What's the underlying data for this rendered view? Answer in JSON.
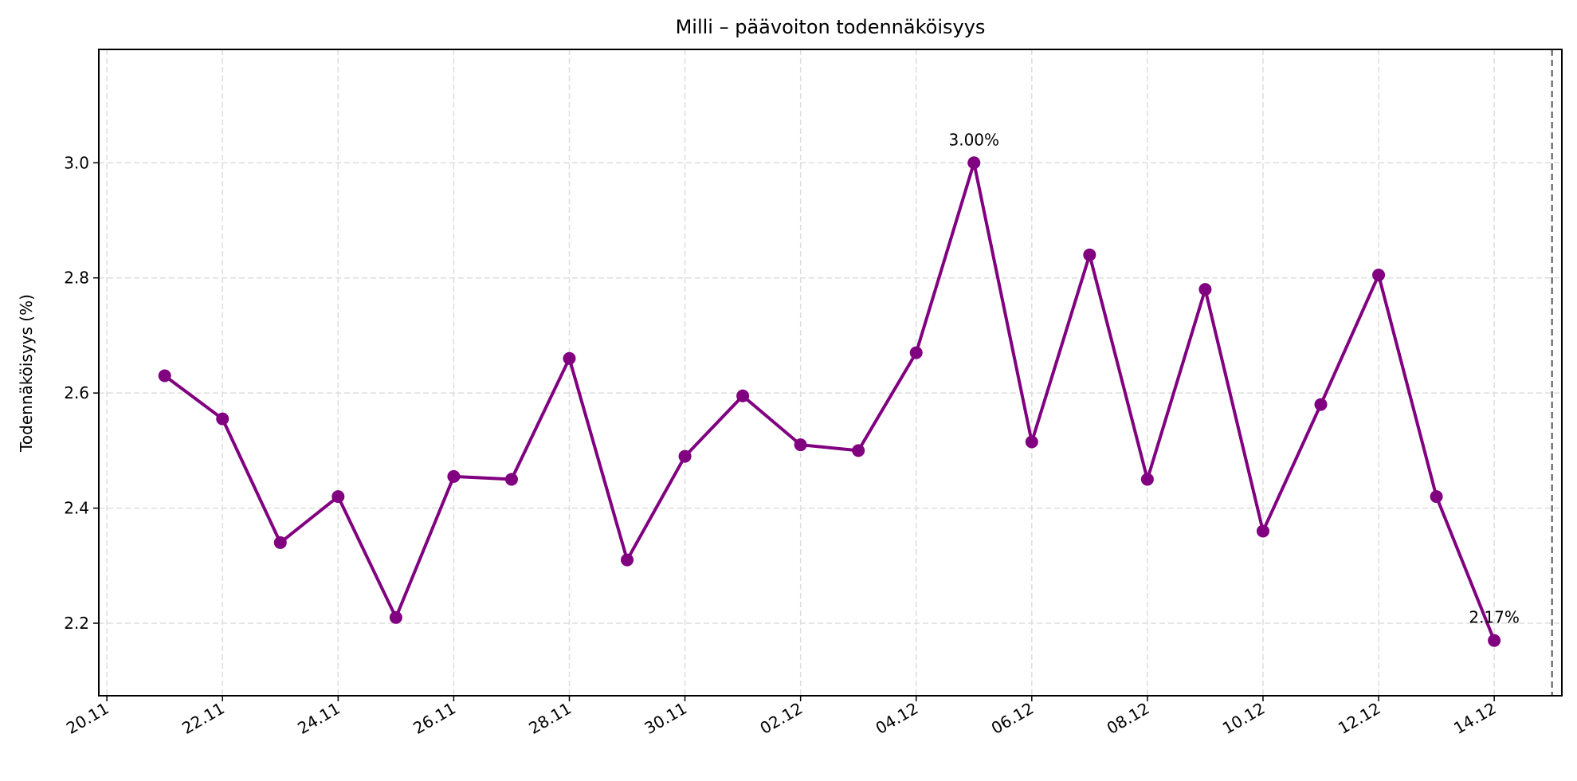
{
  "chart_data": {
    "type": "line",
    "title": "Milli – päävoiton todennäköisyys",
    "xlabel": "",
    "ylabel": "Todennäköisyys (%)",
    "x": [
      "21.11",
      "22.11",
      "23.11",
      "24.11",
      "25.11",
      "26.11",
      "27.11",
      "28.11",
      "29.11",
      "30.11",
      "01.12",
      "02.12",
      "03.12",
      "04.12",
      "05.12",
      "06.12",
      "07.12",
      "08.12",
      "09.12",
      "10.12",
      "11.12",
      "12.12",
      "13.12",
      "14.12"
    ],
    "series": [
      {
        "name": "Päävoiton todennäköisyys",
        "color": "#800080",
        "marker": "circle",
        "values": [
          2.63,
          2.555,
          2.34,
          2.42,
          2.21,
          2.455,
          2.45,
          2.66,
          2.31,
          2.49,
          2.595,
          2.51,
          2.5,
          2.67,
          3.0,
          2.515,
          2.84,
          2.45,
          2.78,
          2.36,
          2.58,
          2.805,
          2.42,
          2.17
        ]
      }
    ],
    "x_tick_labels": [
      "20.11",
      "22.11",
      "24.11",
      "26.11",
      "28.11",
      "30.11",
      "02.12",
      "04.12",
      "06.12",
      "08.12",
      "10.12",
      "12.12",
      "14.12"
    ],
    "y_ticks": [
      2.2,
      2.4,
      2.6,
      2.8,
      3.0
    ],
    "y_tick_labels": [
      "2.2",
      "2.4",
      "2.6",
      "2.8",
      "3.0"
    ],
    "ylim": [
      2.074,
      3.197
    ],
    "xlim_days_from_20_11": [
      -0.14,
      25.17
    ],
    "grid": true,
    "legend": null,
    "annotations": [
      {
        "x": "05.12",
        "y": 3.0,
        "text": "3.00%"
      },
      {
        "x": "14.12",
        "y": 2.17,
        "text": "2.17%"
      }
    ],
    "vertical_reference_line": {
      "x": "15.12",
      "style": "dashed",
      "color": "#555555"
    }
  }
}
